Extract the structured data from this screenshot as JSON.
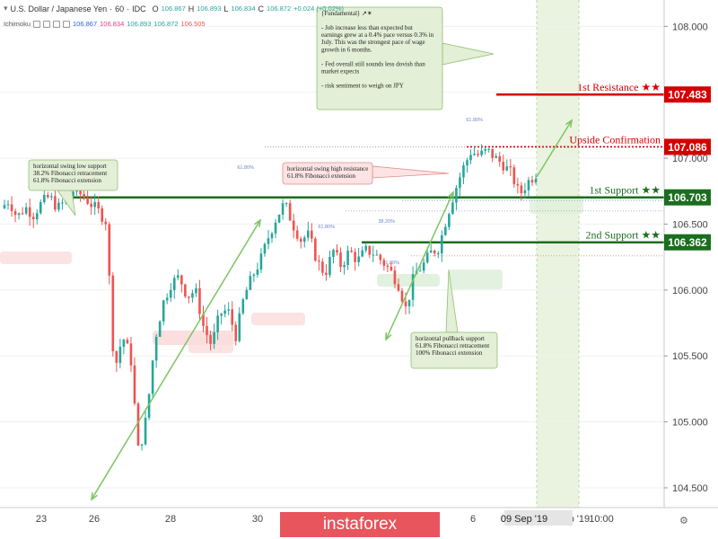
{
  "header": {
    "title": "U.S. Dollar / Japanese Yen",
    "interval": "60",
    "exchange": "IDC",
    "ohlc": [
      {
        "label": "O",
        "value": "106.867"
      },
      {
        "label": "H",
        "value": "106.893"
      },
      {
        "label": "L",
        "value": "106.834"
      },
      {
        "label": "C",
        "value": "106.872"
      }
    ],
    "change": "+0.024 (+0.02%)",
    "indicator": "Ichimoku",
    "indicator_values": [
      "106.867",
      "106.834",
      "106.893",
      "106.872",
      "106.505"
    ]
  },
  "watermark": "instaforex",
  "colors": {
    "up": "#26a69a",
    "down": "#ef5350",
    "support": "#1b6e1f",
    "resistance": "#d40000",
    "trendline": "#7bc561",
    "box_green": "#e3efd6",
    "box_red": "#fde3e3"
  },
  "chart_data": {
    "type": "candlestick",
    "symbol": "USD/JPY",
    "timeframe": "60",
    "ylim": [
      104.35,
      108.2
    ],
    "y_ticks": [
      "108.000",
      "107.500",
      "107.000",
      "106.500",
      "106.000",
      "105.500",
      "105.000",
      "104.500"
    ],
    "x_ticks": [
      "23",
      "26",
      "28",
      "30",
      "6",
      "09 Sep '19",
      "10 Sep '19",
      "10:00"
    ],
    "levels": [
      {
        "name": "1st Resistance ★★",
        "value": 107.483,
        "label": "107.483"
      },
      {
        "name": "Upside Confirmation",
        "value": 107.086,
        "label": "107.086"
      },
      {
        "name": "1st Support ★★",
        "value": 106.703,
        "label": "106.703"
      },
      {
        "name": "2nd Support ★★",
        "value": 106.362,
        "label": "106.362"
      }
    ],
    "fib_labels": [
      "61.80%",
      "61.80%",
      "38.20%",
      "61.80%",
      "61.80%"
    ],
    "annotations": [
      {
        "lines": [
          "horizontal swing low support",
          "38.2% Fibonacci retracement",
          "61.8% Fibonacci extension"
        ]
      },
      {
        "lines": [
          "horizontal swing high resistance",
          "61.8% Fibonacci extension"
        ]
      },
      {
        "lines": [
          "horizontal pullback support",
          "61.8% Fibonacci retracement",
          "100% Fibonacci extension"
        ]
      },
      {
        "lines": [
          "{Fundamental} ↗✶",
          "",
          "- Job increase less than expected but",
          "earnings grew at a 0.4% pace versus 0.3% in",
          "July. This was the strongest pace of wage",
          "growth in 6 months.",
          "",
          "- Fed overall still sounds less dovish than",
          "market expects",
          "",
          "- risk sentiment to weigh on JPY"
        ]
      }
    ],
    "price_path": [
      [
        106.62,
        106.68,
        106.55,
        106.63,
        106.57,
        106.66,
        106.71,
        106.62,
        106.68,
        106.76,
        106.72,
        106.66,
        106.6,
        106.52,
        105.38,
        105.65,
        105.5,
        104.75,
        105.05,
        105.62,
        105.9,
        106.05,
        106.1,
        105.95,
        106.0,
        105.72,
        105.58,
        105.82,
        105.85,
        105.65,
        105.95,
        106.1,
        106.22,
        106.4,
        106.55,
        106.66,
        106.5,
        106.38,
        106.42,
        106.22,
        106.12,
        106.3,
        106.18,
        106.3,
        106.22,
        106.3,
        106.28,
        106.22,
        106.15,
        106.05,
        105.85,
        106.12,
        106.18,
        106.28,
        106.32,
        106.55,
        106.75,
        106.92,
        107.05,
        107.02,
        107.06,
        107.0,
        106.95,
        106.88,
        106.72,
        106.82,
        106.88
      ]
    ]
  }
}
